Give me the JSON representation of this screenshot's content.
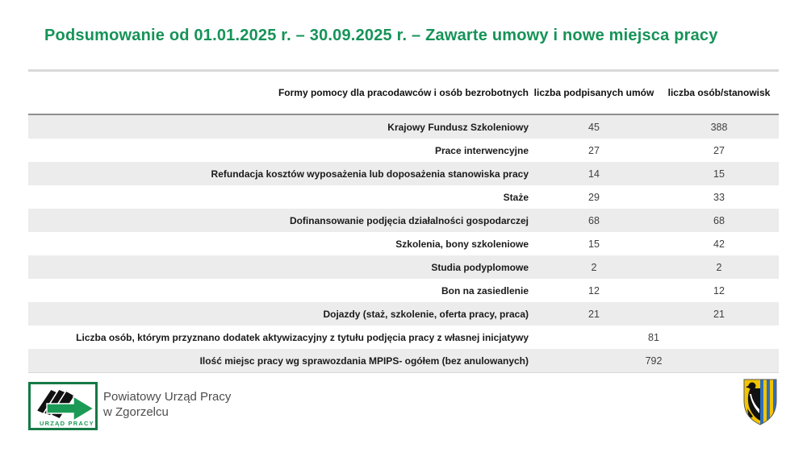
{
  "title": "Podsumowanie od 01.01.2025 r. – 30.09.2025 r. – Zawarte umowy i nowe miejsca pracy",
  "table": {
    "columns": [
      "Formy pomocy dla pracodawców i osób bezrobotnych",
      "liczba podpisanych umów",
      "liczba osób/stanowisk"
    ],
    "rows": [
      {
        "label": "Krajowy Fundusz Szkoleniowy",
        "contracts": "45",
        "persons": "388"
      },
      {
        "label": "Prace interwencyjne",
        "contracts": "27",
        "persons": "27"
      },
      {
        "label": "Refundacja kosztów wyposażenia lub doposażenia stanowiska pracy",
        "contracts": "14",
        "persons": "15"
      },
      {
        "label": "Staże",
        "contracts": "29",
        "persons": "33"
      },
      {
        "label": "Dofinansowanie podjęcia działalności gospodarczej",
        "contracts": "68",
        "persons": "68"
      },
      {
        "label": "Szkolenia, bony szkoleniowe",
        "contracts": "15",
        "persons": "42"
      },
      {
        "label": "Studia podyplomowe",
        "contracts": "2",
        "persons": "2"
      },
      {
        "label": "Bon na zasiedlenie",
        "contracts": "12",
        "persons": "12"
      },
      {
        "label": "Dojazdy (staż, szkolenie, oferta pracy, praca)",
        "contracts": "21",
        "persons": "21"
      },
      {
        "label": "Liczba osób, którym przyznano dodatek aktywizacyjny z tytułu podjęcia pracy z własnej inicjatywy",
        "merged": "81"
      },
      {
        "label": "Ilość miejsc pracy wg sprawozdania MPIPS- ogółem (bez anulowanych)",
        "merged": "792"
      }
    ]
  },
  "footer": {
    "logo_text": "URZĄD PRACY",
    "org_line1": "Powiatowy Urząd Pracy",
    "org_line2": "w Zgorzelcu"
  },
  "colors": {
    "title_green": "#169358",
    "stripe_gray": "#ececec",
    "logo_green": "#1b9а56",
    "logo_border_green": "#157a47",
    "crest_gold": "#f2c400",
    "crest_blue": "#2f6fb8",
    "crest_black": "#111111"
  }
}
